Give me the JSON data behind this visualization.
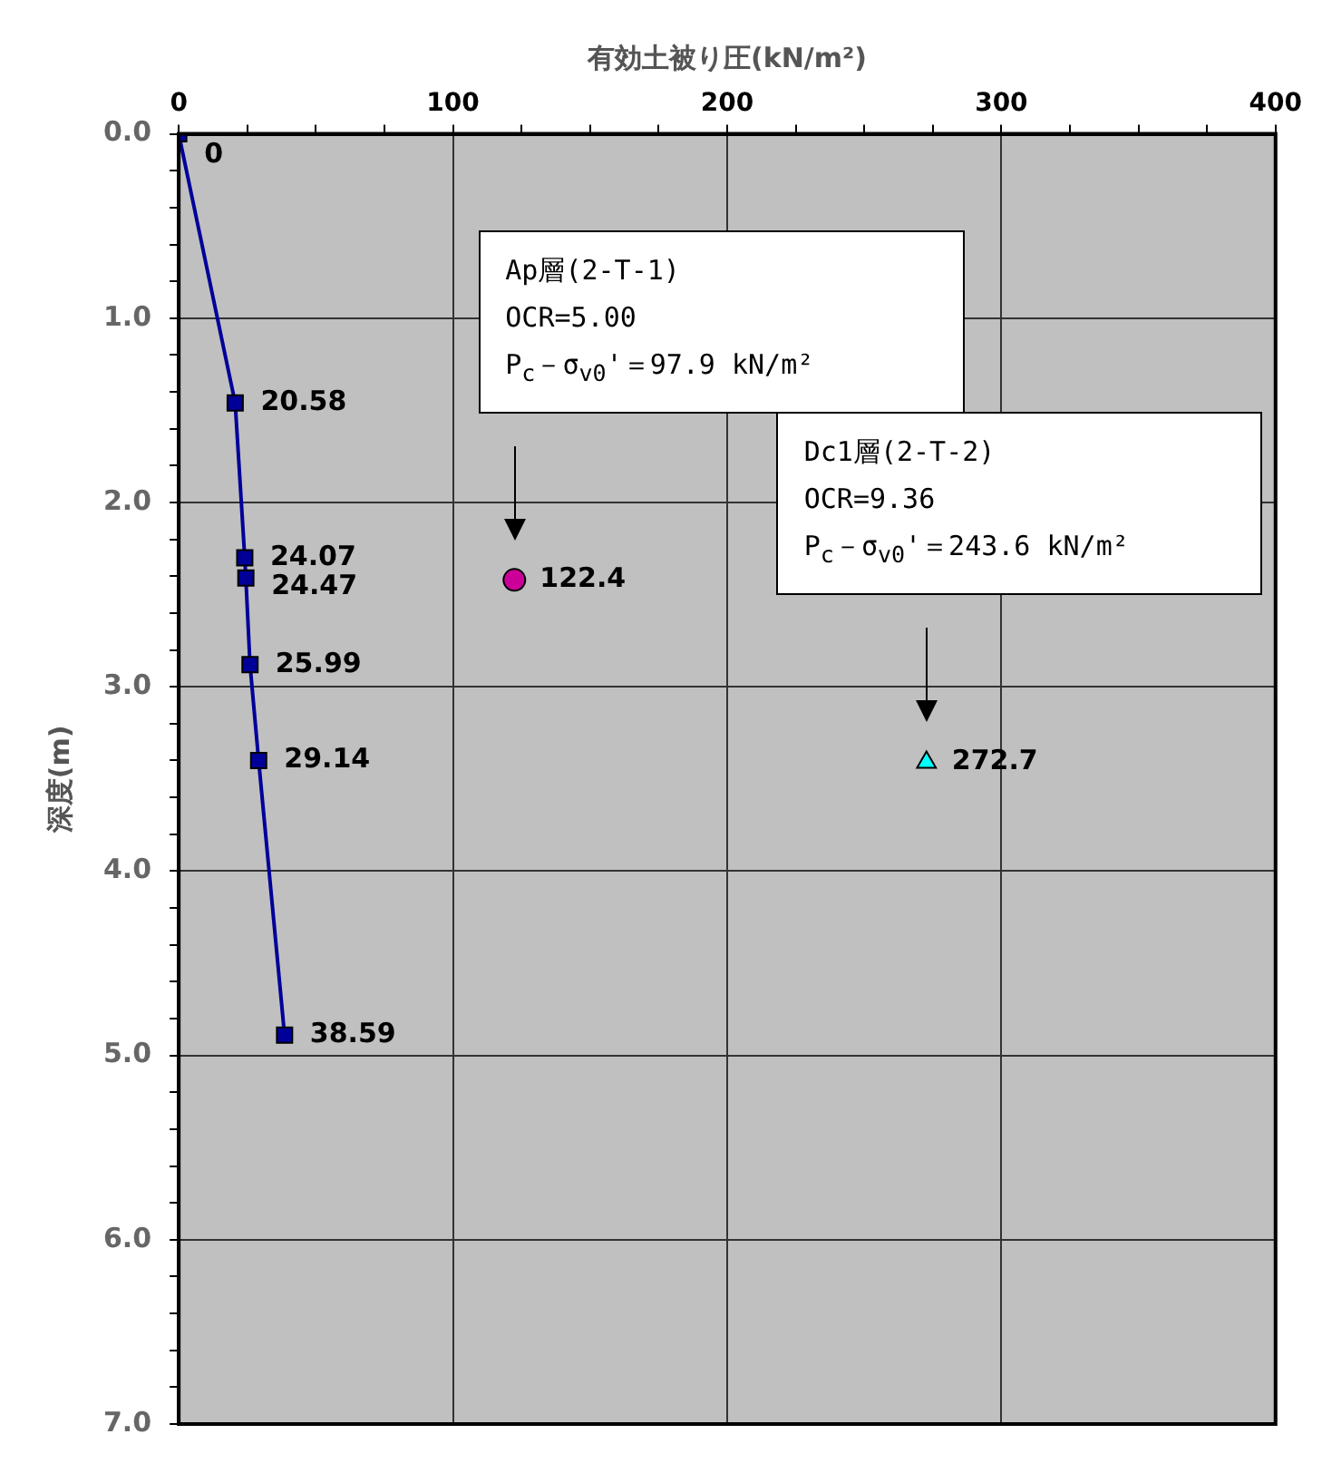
{
  "chart_data": {
    "type": "line",
    "xlabel": "有効土被り圧(kN/m²)",
    "ylabel": "深度(m)",
    "xlim": [
      0,
      400
    ],
    "xticks": [
      0,
      {
        "value": 25,
        "label": null
      },
      {
        "value": 50,
        "label": null
      },
      {
        "value": 75,
        "label": null
      },
      100,
      {
        "value": 125,
        "label": null
      },
      {
        "value": 150,
        "label": null
      },
      {
        "value": 175,
        "label": null
      },
      200,
      {
        "value": 225,
        "label": null
      },
      {
        "value": 250,
        "label": null
      },
      {
        "value": 275,
        "label": null
      },
      300,
      {
        "value": 325,
        "label": null
      },
      {
        "value": 350,
        "label": null
      },
      {
        "value": 375,
        "label": null
      },
      400
    ],
    "ylim": [
      7,
      0
    ],
    "yticks": [
      {
        "value": 0,
        "label": "0.0"
      },
      {
        "value": 0.2,
        "label": null
      },
      {
        "value": 0.4,
        "label": null
      },
      {
        "value": 0.6,
        "label": null
      },
      {
        "value": 0.8,
        "label": null
      },
      {
        "value": 1,
        "label": "1.0"
      },
      {
        "value": 1.2,
        "label": null
      },
      {
        "value": 1.4,
        "label": null
      },
      {
        "value": 1.6,
        "label": null
      },
      {
        "value": 1.8,
        "label": null
      },
      {
        "value": 2,
        "label": "2.0"
      },
      {
        "value": 2.2,
        "label": null
      },
      {
        "value": 2.4,
        "label": null
      },
      {
        "value": 2.6,
        "label": null
      },
      {
        "value": 2.8,
        "label": null
      },
      {
        "value": 3,
        "label": "3.0"
      },
      {
        "value": 3.2,
        "label": null
      },
      {
        "value": 3.4,
        "label": null
      },
      {
        "value": 3.6,
        "label": null
      },
      {
        "value": 3.8,
        "label": null
      },
      {
        "value": 4,
        "label": "4.0"
      },
      {
        "value": 4.2,
        "label": null
      },
      {
        "value": 4.4,
        "label": null
      },
      {
        "value": 4.6,
        "label": null
      },
      {
        "value": 4.8,
        "label": null
      },
      {
        "value": 5,
        "label": "5.0"
      },
      {
        "value": 5.2,
        "label": null
      },
      {
        "value": 5.4,
        "label": null
      },
      {
        "value": 5.6,
        "label": null
      },
      {
        "value": 5.8,
        "label": null
      },
      {
        "value": 6,
        "label": "6.0"
      },
      {
        "value": 6.2,
        "label": null
      },
      {
        "value": 6.4,
        "label": null
      },
      {
        "value": 6.6,
        "label": null
      },
      {
        "value": 6.8,
        "label": null
      },
      {
        "value": 7,
        "label": "7.0"
      }
    ],
    "grid": true,
    "legend": false,
    "series": [
      {
        "color": "#000099",
        "marker": "square",
        "line_style": "solid",
        "x": [
          0,
          20.58,
          24.07,
          24.47,
          25.99,
          29.14,
          38.59
        ],
        "values": [
          0,
          1.46,
          2.3,
          2.41,
          2.88,
          3.4,
          4.89
        ]
      },
      {
        "type": "scatter",
        "color": "#cc0099",
        "marker": "circle",
        "x": [
          122.4
        ],
        "values": [
          2.42
        ]
      },
      {
        "type": "scatter",
        "color": "#00ffff",
        "marker": "triangle",
        "x": [
          272.7
        ],
        "values": [
          3.41
        ]
      }
    ],
    "annotations": [
      "Ap層(2-T-1)\nOCR=5.00\nP$_{c}$－σ$_{v0}$'＝97.9 kN/m²",
      "Dc1層(2-T-2)\nOCR=9.36\nP$_{c}$－σ$_{v0}$'＝243.6 kN/m²",
      {
        "text": "0",
        "x": 0,
        "y": 0
      },
      {
        "text": "20.58",
        "x": 20.58,
        "y": 1.46
      },
      {
        "text": "24.07",
        "x": 24.07,
        "y": 2.3
      },
      {
        "text": "24.47",
        "x": 24.47,
        "y": 2.41
      },
      {
        "text": "25.99",
        "x": 25.99,
        "y": 2.88
      },
      {
        "text": "29.14",
        "x": 29.14,
        "y": 3.4
      },
      {
        "text": "38.59",
        "x": 38.59,
        "y": 4.89
      },
      {
        "text": "122.4",
        "x": 122.4,
        "y": 2.42
      },
      {
        "text": "272.7",
        "x": 272.7,
        "y": 3.41
      }
    ]
  }
}
